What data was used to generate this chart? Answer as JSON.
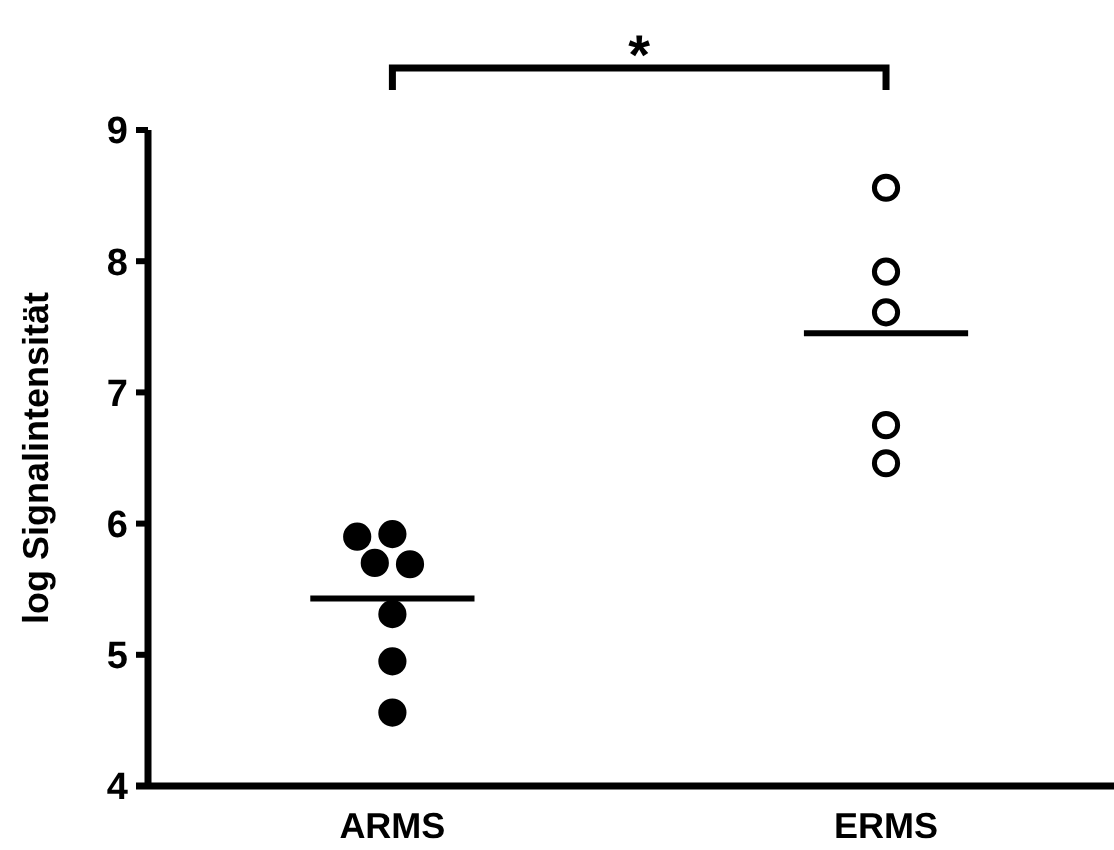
{
  "chart_data": {
    "type": "scatter",
    "ylabel": "log Signalintensität",
    "categories": [
      "ARMS",
      "ERMS"
    ],
    "ylim": [
      4,
      9
    ],
    "yticks": [
      4,
      5,
      6,
      7,
      8,
      9
    ],
    "marker": "circle",
    "grid": false,
    "ref_lines": [
      {
        "axis": "y",
        "value": 5.43,
        "color": "#000000"
      },
      {
        "axis": "y",
        "value": 7.45,
        "color": "#000000"
      }
    ],
    "annotations": [
      "*"
    ],
    "series": [
      {
        "color": "#000000",
        "x": [
          "ARMS",
          "ARMS",
          "ARMS",
          "ARMS",
          "ARMS",
          "ARMS",
          "ARMS"
        ],
        "values": [
          5.92,
          5.7,
          5.69,
          5.9,
          5.31,
          4.95,
          4.56
        ]
      },
      {
        "color": "#ffffff",
        "x": [
          "ERMS",
          "ERMS",
          "ERMS",
          "ERMS",
          "ERMS"
        ],
        "values": [
          8.56,
          7.92,
          7.61,
          6.75,
          6.46
        ]
      }
    ]
  }
}
